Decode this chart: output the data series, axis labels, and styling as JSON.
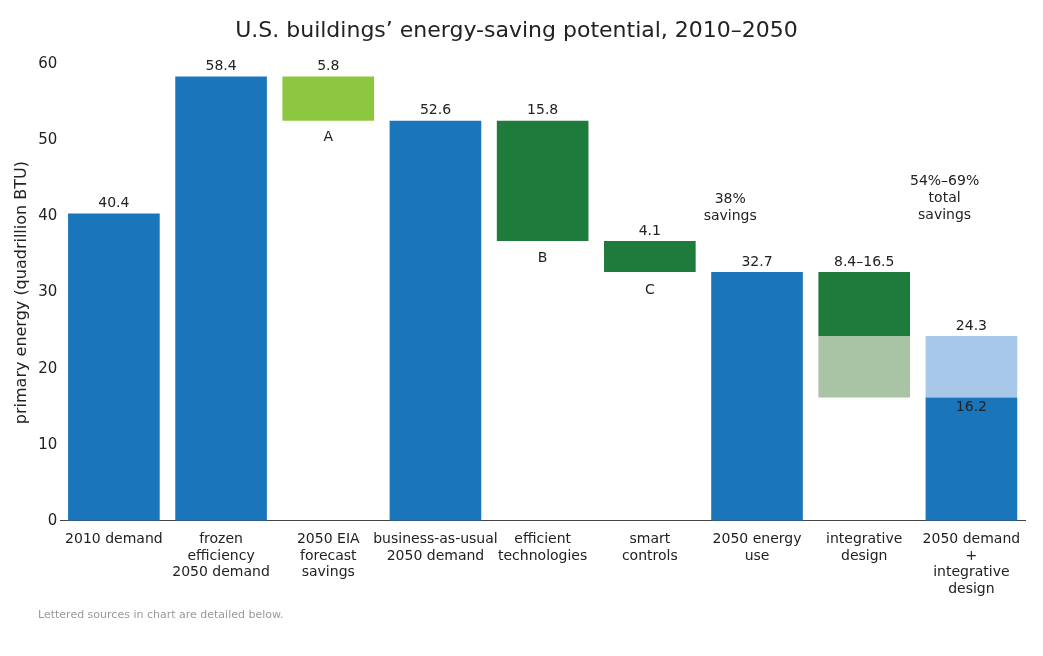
{
  "chart_data": {
    "type": "bar",
    "title": "U.S. buildings’ energy-saving potential, 2010–2050",
    "ylabel": "primary energy (quadrillion BTU)",
    "categories": [
      "2010 demand",
      "frozen efficiency 2050 demand",
      "2050 EIA forecast savings",
      "business-as-usual 2050 demand",
      "efficient technologies",
      "smart controls",
      "2050 energy use",
      "integrative design",
      "2050 demand + integrative design"
    ],
    "series": [
      {
        "base": [
          0,
          0,
          52.6,
          0,
          36.8,
          32.7,
          0,
          16.2,
          0
        ],
        "values": [
          40.4,
          58.4,
          5.8,
          52.6,
          15.8,
          4.1,
          32.7,
          8.1,
          16.2
        ],
        "colors": [
          "#1b75bb",
          "#1b75bb",
          "#8dc63f",
          "#1b75bb",
          "#1e7b3c",
          "#1e7b3c",
          "#1b75bb",
          "#a9c4a5",
          "#1b75bb"
        ],
        "value_labels": [
          "40.4",
          "58.4",
          "5.8",
          "52.6",
          "15.8",
          "4.1",
          "32.7",
          null,
          "16.2"
        ]
      },
      {
        "base": [
          null,
          null,
          null,
          null,
          null,
          null,
          null,
          24.3,
          16.2
        ],
        "values": [
          null,
          null,
          null,
          null,
          null,
          null,
          null,
          8.4,
          8.1
        ],
        "colors": [
          "#1e7b3c",
          "#1e7b3c",
          "#1e7b3c",
          "#1e7b3c",
          "#1e7b3c",
          "#1e7b3c",
          "#1e7b3c",
          "#1e7b3c",
          "#a8c8ea"
        ]
      }
    ],
    "ylim": [
      0,
      60
    ],
    "yticks": [
      0,
      10,
      20,
      30,
      40,
      50,
      60
    ],
    "legend": false,
    "annotations": [
      {
        "text": "8.4–16.5",
        "x": "integrative design",
        "y": 32.7
      },
      {
        "text": "24.3",
        "x": "2050 demand + integrative design",
        "y": 24.3
      },
      "A",
      "B",
      "C",
      "38% savings",
      "54%–69% total savings",
      "Lettered sources in chart are detailed below."
    ]
  }
}
